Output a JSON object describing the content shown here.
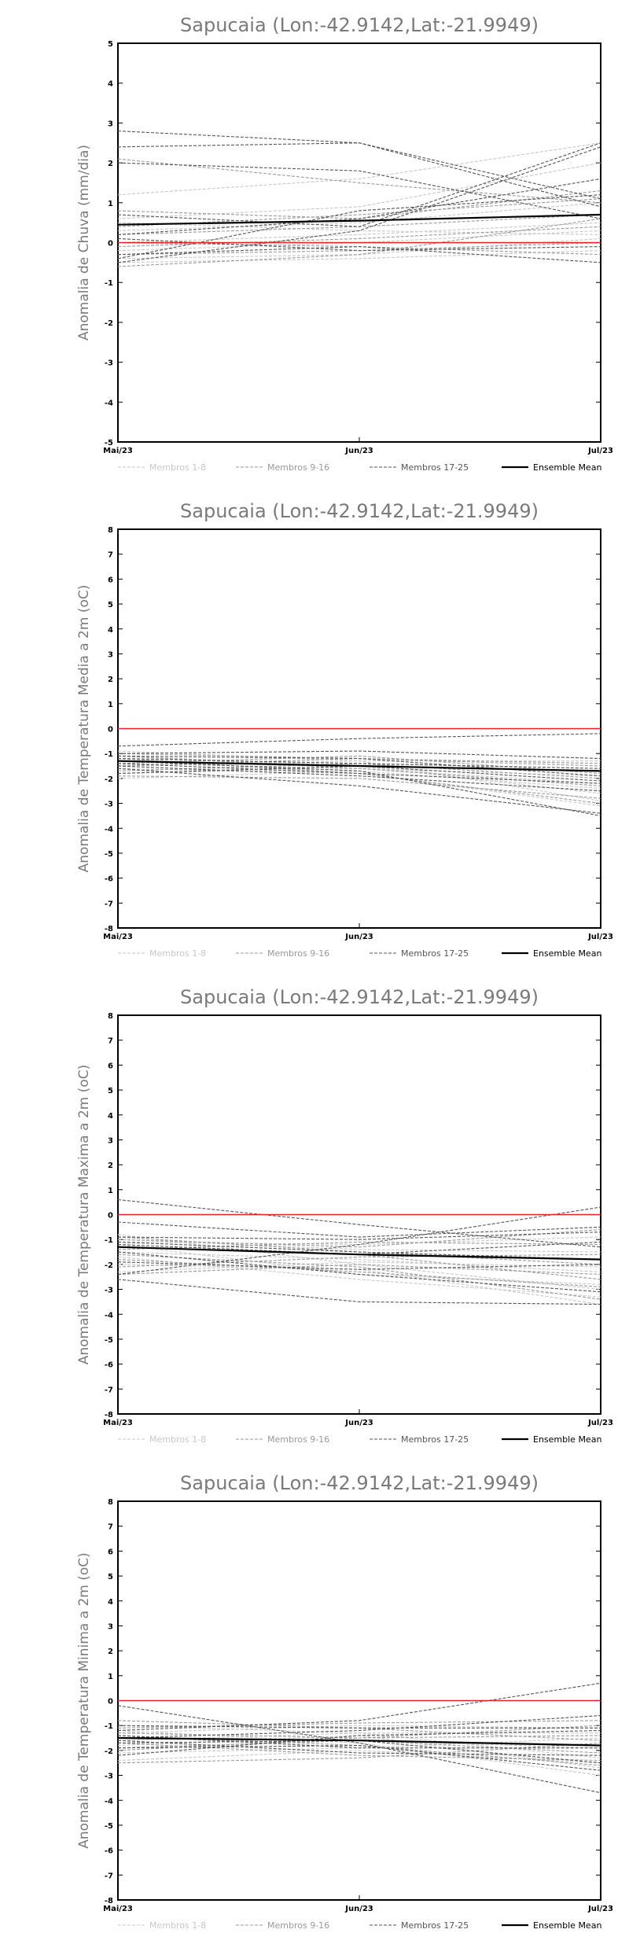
{
  "chart_data": [
    {
      "type": "line",
      "title": "Sapucaia (Lon:-42.9142,Lat:-21.9949)",
      "ylabel": "Anomalia de Chuva (mm/dia)",
      "categories": [
        "Mai/23",
        "Jun/23",
        "Jul/23"
      ],
      "ylim": [
        -5,
        5
      ],
      "yticks": [
        -5,
        -4,
        -3,
        -2,
        -1,
        0,
        1,
        2,
        3,
        4,
        5
      ],
      "legend": [
        "Membros 1-8",
        "Membros 9-16",
        "Membros 17-25",
        "Ensemble Mean"
      ],
      "legend_placement": "bottom",
      "zero_line_color": "#e8202a",
      "series": [
        {
          "group": 0,
          "values": [
            1.2,
            1.6,
            2.5
          ]
        },
        {
          "group": 0,
          "values": [
            0.6,
            0.9,
            2.0
          ]
        },
        {
          "group": 0,
          "values": [
            0.3,
            0.5,
            1.0
          ]
        },
        {
          "group": 0,
          "values": [
            0.0,
            0.2,
            0.5
          ]
        },
        {
          "group": 0,
          "values": [
            -0.2,
            0.0,
            0.3
          ]
        },
        {
          "group": 0,
          "values": [
            -0.4,
            -0.3,
            0.1
          ]
        },
        {
          "group": 0,
          "values": [
            -0.5,
            -0.4,
            -0.2
          ]
        },
        {
          "group": 0,
          "values": [
            0.5,
            0.3,
            0.2
          ]
        },
        {
          "group": 1,
          "values": [
            2.1,
            1.5,
            1.0
          ]
        },
        {
          "group": 1,
          "values": [
            0.8,
            0.6,
            1.3
          ]
        },
        {
          "group": 1,
          "values": [
            0.2,
            0.4,
            0.7
          ]
        },
        {
          "group": 1,
          "values": [
            -0.1,
            0.1,
            0.4
          ]
        },
        {
          "group": 1,
          "values": [
            -0.3,
            -0.2,
            0.0
          ]
        },
        {
          "group": 1,
          "values": [
            0.0,
            -0.1,
            -0.3
          ]
        },
        {
          "group": 1,
          "values": [
            0.4,
            0.7,
            1.1
          ]
        },
        {
          "group": 1,
          "values": [
            -0.6,
            -0.3,
            0.6
          ]
        },
        {
          "group": 2,
          "values": [
            2.8,
            2.5,
            1.1
          ]
        },
        {
          "group": 2,
          "values": [
            2.4,
            2.5,
            0.9
          ]
        },
        {
          "group": 2,
          "values": [
            2.0,
            1.8,
            0.6
          ]
        },
        {
          "group": 2,
          "values": [
            0.7,
            0.4,
            2.5
          ]
        },
        {
          "group": 2,
          "values": [
            -0.5,
            0.3,
            2.4
          ]
        },
        {
          "group": 2,
          "values": [
            0.2,
            0.6,
            1.6
          ]
        },
        {
          "group": 2,
          "values": [
            -0.3,
            -0.1,
            -0.5
          ]
        },
        {
          "group": 2,
          "values": [
            0.1,
            -0.2,
            -0.1
          ]
        },
        {
          "group": 2,
          "values": [
            -0.4,
            0.8,
            1.2
          ]
        },
        {
          "group": 3,
          "values": [
            0.45,
            0.55,
            0.7
          ]
        }
      ]
    },
    {
      "type": "line",
      "title": "Sapucaia (Lon:-42.9142,Lat:-21.9949)",
      "ylabel": "Anomalia de Temperatura Media a 2m (oC)",
      "categories": [
        "Mai/23",
        "Jun/23",
        "Jul/23"
      ],
      "ylim": [
        -8,
        8
      ],
      "yticks": [
        -8,
        -7,
        -6,
        -5,
        -4,
        -3,
        -2,
        -1,
        0,
        1,
        2,
        3,
        4,
        5,
        6,
        7,
        8
      ],
      "legend": [
        "Membros 1-8",
        "Membros 9-16",
        "Membros 17-25",
        "Ensemble Mean"
      ],
      "legend_placement": "bottom",
      "zero_line_color": "#e8202a",
      "series": [
        {
          "group": 0,
          "values": [
            -0.9,
            -1.3,
            -2.9
          ]
        },
        {
          "group": 0,
          "values": [
            -1.1,
            -1.5,
            -2.6
          ]
        },
        {
          "group": 0,
          "values": [
            -1.4,
            -1.6,
            -2.2
          ]
        },
        {
          "group": 0,
          "values": [
            -1.6,
            -1.8,
            -3.1
          ]
        },
        {
          "group": 0,
          "values": [
            -1.8,
            -1.6,
            -1.9
          ]
        },
        {
          "group": 0,
          "values": [
            -2.0,
            -1.7,
            -2.4
          ]
        },
        {
          "group": 0,
          "values": [
            -1.2,
            -1.4,
            -1.6
          ]
        },
        {
          "group": 0,
          "values": [
            -1.5,
            -1.3,
            -1.3
          ]
        },
        {
          "group": 1,
          "values": [
            -1.0,
            -1.2,
            -1.4
          ]
        },
        {
          "group": 1,
          "values": [
            -1.3,
            -1.5,
            -1.7
          ]
        },
        {
          "group": 1,
          "values": [
            -1.7,
            -1.4,
            -2.0
          ]
        },
        {
          "group": 1,
          "values": [
            -1.9,
            -2.0,
            -2.8
          ]
        },
        {
          "group": 1,
          "values": [
            -1.2,
            -1.8,
            -3.0
          ]
        },
        {
          "group": 1,
          "values": [
            -1.5,
            -1.2,
            -1.5
          ]
        },
        {
          "group": 1,
          "values": [
            -1.1,
            -1.6,
            -2.3
          ]
        },
        {
          "group": 1,
          "values": [
            -1.4,
            -1.1,
            -1.8
          ]
        },
        {
          "group": 2,
          "values": [
            -0.7,
            -0.4,
            -0.2
          ]
        },
        {
          "group": 2,
          "values": [
            -1.0,
            -0.9,
            -1.2
          ]
        },
        {
          "group": 2,
          "values": [
            -1.3,
            -1.7,
            -3.5
          ]
        },
        {
          "group": 2,
          "values": [
            -1.6,
            -2.3,
            -3.4
          ]
        },
        {
          "group": 2,
          "values": [
            -1.2,
            -1.4,
            -1.6
          ]
        },
        {
          "group": 2,
          "values": [
            -1.8,
            -1.5,
            -2.1
          ]
        },
        {
          "group": 2,
          "values": [
            -1.5,
            -1.9,
            -2.5
          ]
        },
        {
          "group": 2,
          "values": [
            -1.1,
            -1.2,
            -1.9
          ]
        },
        {
          "group": 2,
          "values": [
            -1.4,
            -1.8,
            -2.2
          ]
        },
        {
          "group": 3,
          "values": [
            -1.3,
            -1.5,
            -1.7
          ]
        }
      ]
    },
    {
      "type": "line",
      "title": "Sapucaia (Lon:-42.9142,Lat:-21.9949)",
      "ylabel": "Anomalia de Temperatura Maxima a 2m (oC)",
      "categories": [
        "Mai/23",
        "Jun/23",
        "Jul/23"
      ],
      "ylim": [
        -8,
        8
      ],
      "yticks": [
        -8,
        -7,
        -6,
        -5,
        -4,
        -3,
        -2,
        -1,
        0,
        1,
        2,
        3,
        4,
        5,
        6,
        7,
        8
      ],
      "legend": [
        "Membros 1-8",
        "Membros 9-16",
        "Membros 17-25",
        "Ensemble Mean"
      ],
      "legend_placement": "bottom",
      "zero_line_color": "#e8202a",
      "series": [
        {
          "group": 0,
          "values": [
            -0.8,
            -2.0,
            -3.0
          ]
        },
        {
          "group": 0,
          "values": [
            -1.2,
            -2.4,
            -2.8
          ]
        },
        {
          "group": 0,
          "values": [
            -1.5,
            -1.8,
            -2.3
          ]
        },
        {
          "group": 0,
          "values": [
            -2.0,
            -2.2,
            -3.6
          ]
        },
        {
          "group": 0,
          "values": [
            -1.0,
            -1.4,
            -1.5
          ]
        },
        {
          "group": 0,
          "values": [
            -1.7,
            -2.6,
            -3.3
          ]
        },
        {
          "group": 0,
          "values": [
            -2.3,
            -1.9,
            -2.1
          ]
        },
        {
          "group": 0,
          "values": [
            -1.1,
            -1.2,
            -0.9
          ]
        },
        {
          "group": 1,
          "values": [
            -1.3,
            -1.6,
            -2.6
          ]
        },
        {
          "group": 1,
          "values": [
            -0.9,
            -1.5,
            -2.0
          ]
        },
        {
          "group": 1,
          "values": [
            -1.6,
            -2.1,
            -3.4
          ]
        },
        {
          "group": 1,
          "values": [
            -2.1,
            -1.7,
            -1.6
          ]
        },
        {
          "group": 1,
          "values": [
            -1.4,
            -1.1,
            -1.2
          ]
        },
        {
          "group": 1,
          "values": [
            -1.8,
            -2.3,
            -2.9
          ]
        },
        {
          "group": 1,
          "values": [
            -1.0,
            -1.3,
            -0.6
          ]
        },
        {
          "group": 1,
          "values": [
            -2.4,
            -2.0,
            -2.4
          ]
        },
        {
          "group": 2,
          "values": [
            0.6,
            -0.4,
            -1.3
          ]
        },
        {
          "group": 2,
          "values": [
            -2.6,
            -3.5,
            -3.6
          ]
        },
        {
          "group": 2,
          "values": [
            -2.4,
            -1.2,
            0.3
          ]
        },
        {
          "group": 2,
          "values": [
            -1.2,
            -1.6,
            -1.1
          ]
        },
        {
          "group": 2,
          "values": [
            -0.9,
            -1.0,
            -0.7
          ]
        },
        {
          "group": 2,
          "values": [
            -1.5,
            -2.4,
            -3.1
          ]
        },
        {
          "group": 2,
          "values": [
            -0.3,
            -0.9,
            -0.5
          ]
        },
        {
          "group": 2,
          "values": [
            -1.9,
            -2.2,
            -2.0
          ]
        },
        {
          "group": 2,
          "values": [
            -1.1,
            -1.5,
            -1.8
          ]
        },
        {
          "group": 3,
          "values": [
            -1.3,
            -1.6,
            -1.8
          ]
        }
      ]
    },
    {
      "type": "line",
      "title": "Sapucaia (Lon:-42.9142,Lat:-21.9949)",
      "ylabel": "Anomalia de Temperatura Minima a 2m (oC)",
      "categories": [
        "Mai/23",
        "Jun/23",
        "Jul/23"
      ],
      "ylim": [
        -8,
        8
      ],
      "yticks": [
        -8,
        -7,
        -6,
        -5,
        -4,
        -3,
        -2,
        -1,
        0,
        1,
        2,
        3,
        4,
        5,
        6,
        7,
        8
      ],
      "legend": [
        "Membros 1-8",
        "Membros 9-16",
        "Membros 17-25",
        "Ensemble Mean"
      ],
      "legend_placement": "bottom",
      "zero_line_color": "#e8202a",
      "series": [
        {
          "group": 0,
          "values": [
            -1.0,
            -1.3,
            -2.3
          ]
        },
        {
          "group": 0,
          "values": [
            -1.3,
            -1.0,
            -1.1
          ]
        },
        {
          "group": 0,
          "values": [
            -1.5,
            -1.6,
            -1.9
          ]
        },
        {
          "group": 0,
          "values": [
            -1.8,
            -1.4,
            -2.7
          ]
        },
        {
          "group": 0,
          "values": [
            -2.1,
            -1.9,
            -1.5
          ]
        },
        {
          "group": 0,
          "values": [
            -1.2,
            -1.7,
            -3.0
          ]
        },
        {
          "group": 0,
          "values": [
            -2.4,
            -2.0,
            -2.5
          ]
        },
        {
          "group": 0,
          "values": [
            -1.6,
            -1.3,
            -1.3
          ]
        },
        {
          "group": 1,
          "values": [
            -0.8,
            -1.1,
            -1.6
          ]
        },
        {
          "group": 1,
          "values": [
            -1.4,
            -1.8,
            -2.6
          ]
        },
        {
          "group": 1,
          "values": [
            -2.0,
            -1.5,
            -1.0
          ]
        },
        {
          "group": 1,
          "values": [
            -1.7,
            -2.2,
            -2.4
          ]
        },
        {
          "group": 1,
          "values": [
            -1.1,
            -0.9,
            -0.8
          ]
        },
        {
          "group": 1,
          "values": [
            -1.9,
            -1.6,
            -2.1
          ]
        },
        {
          "group": 1,
          "values": [
            -2.5,
            -2.3,
            -1.7
          ]
        },
        {
          "group": 1,
          "values": [
            -1.3,
            -1.5,
            -1.4
          ]
        },
        {
          "group": 2,
          "values": [
            -1.2,
            -0.8,
            0.7
          ]
        },
        {
          "group": 2,
          "values": [
            -0.2,
            -1.7,
            -3.7
          ]
        },
        {
          "group": 2,
          "values": [
            -1.5,
            -1.2,
            -0.6
          ]
        },
        {
          "group": 2,
          "values": [
            -1.9,
            -1.8,
            -2.8
          ]
        },
        {
          "group": 2,
          "values": [
            -1.6,
            -2.1,
            -2.2
          ]
        },
        {
          "group": 2,
          "values": [
            -2.2,
            -1.4,
            -1.2
          ]
        },
        {
          "group": 2,
          "values": [
            -1.4,
            -1.9,
            -1.9
          ]
        },
        {
          "group": 2,
          "values": [
            -1.0,
            -1.1,
            -1.1
          ]
        },
        {
          "group": 2,
          "values": [
            -1.7,
            -1.6,
            -2.5
          ]
        },
        {
          "group": 3,
          "values": [
            -1.5,
            -1.6,
            -1.8
          ]
        }
      ]
    }
  ]
}
